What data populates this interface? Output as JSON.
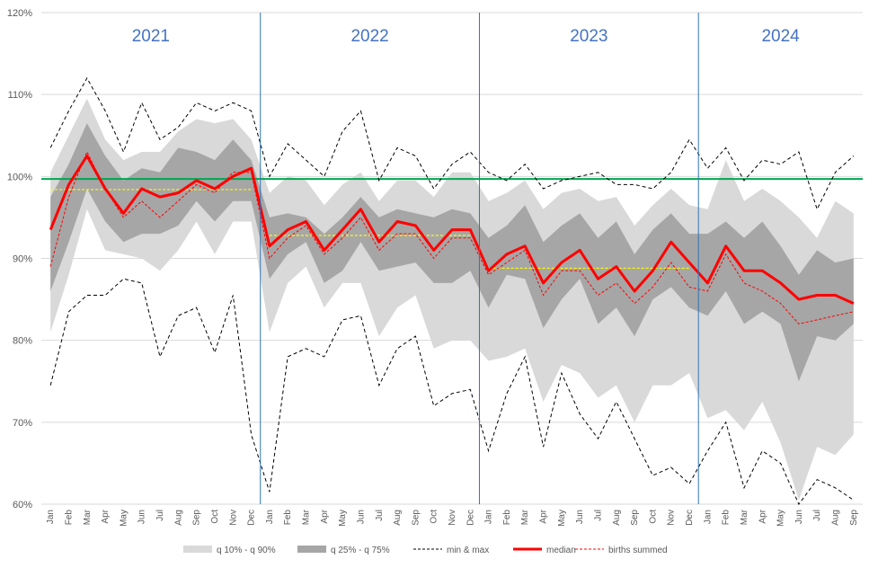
{
  "chart_data": {
    "type": "line",
    "ylim": [
      60,
      120
    ],
    "y_unit": "%",
    "yticks": [
      60,
      70,
      80,
      90,
      100,
      110,
      120
    ],
    "month_labels": [
      "Jan",
      "Feb",
      "Mar",
      "Apr",
      "May",
      "Jun",
      "Jul",
      "Aug",
      "Sep",
      "Oct",
      "Nov",
      "Dec"
    ],
    "years": [
      "2021",
      "2022",
      "2023",
      "2024"
    ],
    "reference_line": 99.7,
    "x": [
      "Jan",
      "Feb",
      "Mar",
      "Apr",
      "May",
      "Jun",
      "Jul",
      "Aug",
      "Sep",
      "Oct",
      "Nov",
      "Dec",
      "Jan",
      "Feb",
      "Mar",
      "Apr",
      "May",
      "Jun",
      "Jul",
      "Aug",
      "Sep",
      "Oct",
      "Nov",
      "Dec",
      "Jan",
      "Feb",
      "Mar",
      "Apr",
      "May",
      "Jun",
      "Jul",
      "Aug",
      "Sep",
      "Oct",
      "Nov",
      "Dec",
      "Jan",
      "Feb",
      "Mar",
      "Apr",
      "May",
      "Jun",
      "Jul",
      "Aug",
      "Sep"
    ],
    "series": [
      {
        "name": "q 10% - q 90%",
        "kind": "band",
        "color": "#d9d9d9",
        "lower": [
          81,
          88,
          96,
          91,
          90.5,
          90,
          88.5,
          91,
          94.5,
          90.5,
          94.5,
          94.5,
          81,
          87,
          89,
          84,
          87,
          87,
          80.5,
          84,
          85.5,
          79,
          80,
          80,
          77.5,
          78,
          79,
          72.5,
          77,
          76,
          73,
          74.5,
          70,
          74.5,
          74.5,
          76,
          70.5,
          71.5,
          69,
          72.5,
          67.5,
          60.5,
          67,
          66,
          68.5
        ],
        "upper": [
          100.5,
          105,
          109.5,
          104.5,
          102,
          103,
          103,
          105.5,
          107,
          106.5,
          107,
          104.5,
          98,
          100,
          99.5,
          96.5,
          99,
          100.5,
          97,
          99.5,
          99.5,
          97.5,
          100.5,
          100.5,
          97,
          98,
          99.5,
          96,
          98,
          98.5,
          97,
          97.5,
          94,
          96.5,
          98.5,
          96.5,
          96,
          102,
          97,
          98.5,
          97,
          95,
          92.5,
          97,
          95.5
        ]
      },
      {
        "name": "q 25% - q 75%",
        "kind": "band",
        "color": "#a6a6a6",
        "lower": [
          86,
          92,
          98.5,
          94.5,
          92,
          93,
          93,
          94,
          97,
          94.5,
          97,
          97,
          87.5,
          90.5,
          92,
          87,
          88.5,
          92,
          88.5,
          89,
          89.5,
          87,
          87,
          88.5,
          84,
          88,
          87.5,
          81.5,
          85,
          87.5,
          82,
          84,
          80.5,
          85,
          86.5,
          84,
          83,
          86,
          82,
          83.5,
          82,
          75,
          80.5,
          80,
          82
        ],
        "upper": [
          97.5,
          101.5,
          106.5,
          102.5,
          99.5,
          101,
          100.5,
          103.5,
          103,
          102,
          104.5,
          102,
          95,
          95.5,
          95,
          93,
          95,
          97.5,
          95,
          96,
          95.5,
          95,
          96,
          95.5,
          92.5,
          94,
          96.5,
          92,
          94,
          95.5,
          92.5,
          94.5,
          90.5,
          93.5,
          95.5,
          93,
          93,
          94.5,
          92.5,
          94.5,
          91.5,
          88,
          91,
          89.5,
          90
        ]
      },
      {
        "name": "min & max",
        "kind": "dashed-pair",
        "color": "#000000",
        "lower": [
          74.5,
          83.5,
          85.5,
          85.5,
          87.5,
          87,
          78,
          83,
          84,
          78.5,
          85.5,
          68.5,
          61.5,
          78,
          79,
          78,
          82.5,
          83,
          74.5,
          79,
          80.5,
          72,
          73.5,
          74,
          66.5,
          73.5,
          78,
          67,
          76,
          71,
          68,
          72.5,
          68,
          63.5,
          64.5,
          62.5,
          66.5,
          70,
          62,
          66.5,
          65,
          60,
          63,
          62,
          60.5
        ],
        "upper": [
          103.5,
          108,
          112,
          108,
          103,
          109,
          104.5,
          106,
          109,
          108,
          109,
          108,
          100,
          104,
          102,
          100,
          105.5,
          108,
          99.5,
          103.5,
          102.5,
          98.5,
          101.5,
          103,
          100.5,
          99.5,
          101.5,
          98.5,
          99.5,
          100,
          100.5,
          99,
          99,
          98.5,
          100.5,
          104.5,
          101,
          103.5,
          99.5,
          102,
          101.5,
          103,
          96,
          100.5,
          102.5
        ]
      },
      {
        "name": "median",
        "kind": "line",
        "color": "#ff0000",
        "values": [
          93.5,
          99,
          102.5,
          98.5,
          95.5,
          98.5,
          97.5,
          98,
          99.5,
          98.5,
          100,
          101,
          91.5,
          93.5,
          94.5,
          91,
          93.5,
          96,
          92,
          94.5,
          94,
          91,
          93.5,
          93.5,
          88.5,
          90.5,
          91.5,
          87,
          89.5,
          91,
          87.5,
          89,
          86,
          88.5,
          92,
          89.5,
          87,
          91.5,
          88.5,
          88.5,
          87,
          85,
          85.5,
          85.5,
          84.5
        ]
      },
      {
        "name": "births summed",
        "kind": "dashed-line",
        "color": "#ff0000",
        "values": [
          89,
          97.5,
          103,
          98.5,
          95,
          97,
          95,
          97,
          99,
          98,
          100.5,
          100.5,
          90,
          92.5,
          94,
          90.5,
          92.5,
          95,
          91,
          93,
          93,
          90,
          92.5,
          92.5,
          88,
          89.5,
          91,
          85.5,
          88.5,
          88.5,
          85.5,
          87,
          84.5,
          86.5,
          89.5,
          86.5,
          86,
          90.5,
          87,
          86,
          84.5,
          82,
          82.5,
          83,
          83.5
        ]
      },
      {
        "name": "yearly averages",
        "kind": "segments",
        "color": "#ffff00",
        "segments": [
          {
            "from": 0,
            "to": 11,
            "value": 98.4
          },
          {
            "from": 12,
            "to": 23,
            "value": 92.8
          },
          {
            "from": 24,
            "to": 35,
            "value": 88.8
          }
        ]
      }
    ],
    "legend": [
      "q 10% - q 90%",
      "q 25% - q 75%",
      "min & max",
      "median",
      "births summed"
    ],
    "legend_position": "bottom"
  }
}
